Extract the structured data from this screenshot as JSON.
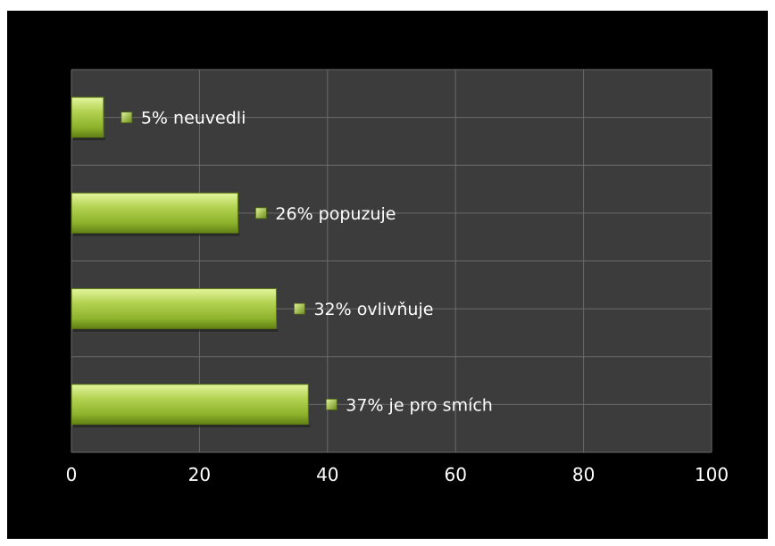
{
  "chart_data": {
    "type": "bar",
    "orientation": "horizontal",
    "title": "",
    "xlabel": "",
    "ylabel": "",
    "xlim": [
      0,
      100
    ],
    "x_ticks": [
      "0",
      "20",
      "40",
      "60",
      "80",
      "100"
    ],
    "grid": true,
    "legend": "none",
    "bars": [
      {
        "value": 37,
        "label": "37%  je pro smích"
      },
      {
        "value": 32,
        "label": "32% ovlivňuje"
      },
      {
        "value": 26,
        "label": "26%  popuzuje"
      },
      {
        "value": 5,
        "label": "5% neuvedli"
      }
    ],
    "colors": {
      "background": "#000000",
      "plot_area": "#3c3c3c",
      "grid": "#6a6a6a",
      "bar_light": "#d6ec85",
      "bar_mid": "#9dc23a",
      "bar_dark": "#5f7f14",
      "text": "#ffffff"
    }
  }
}
